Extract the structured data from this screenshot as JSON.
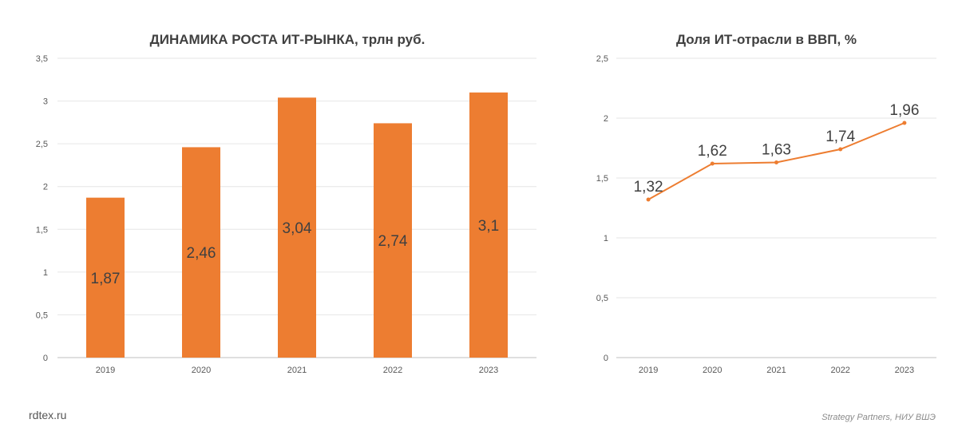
{
  "chart_data": [
    {
      "type": "bar",
      "title": "ДИНАМИКА РОСТА ИТ-РЫНКА, трлн руб.",
      "categories": [
        "2019",
        "2020",
        "2021",
        "2022",
        "2023"
      ],
      "values": [
        1.87,
        2.46,
        3.04,
        2.74,
        3.1
      ],
      "data_labels": [
        "1,87",
        "2,46",
        "3,04",
        "2,74",
        "3,1"
      ],
      "ylim": [
        0,
        3.5
      ],
      "yticks": [
        0,
        0.5,
        1,
        1.5,
        2,
        2.5,
        3,
        3.5
      ],
      "ytick_labels": [
        "0",
        "0,5",
        "1",
        "1,5",
        "2",
        "2,5",
        "3",
        "3,5"
      ],
      "grid": true,
      "color": "#ed7d31"
    },
    {
      "type": "line",
      "title": "Доля ИТ-отрасли в ВВП, %",
      "categories": [
        "2019",
        "2020",
        "2021",
        "2022",
        "2023"
      ],
      "values": [
        1.32,
        1.62,
        1.63,
        1.74,
        1.96
      ],
      "data_labels": [
        "1,32",
        "1,62",
        "1,63",
        "1,74",
        "1,96"
      ],
      "ylim": [
        0,
        2.5
      ],
      "yticks": [
        0,
        0.5,
        1,
        1.5,
        2,
        2.5
      ],
      "ytick_labels": [
        "0",
        "0,5",
        "1",
        "1,5",
        "2",
        "2,5"
      ],
      "grid": true,
      "color": "#ed7d31"
    }
  ],
  "footer": {
    "site": "rdtex.ru",
    "source": "Strategy Partners, НИУ ВШЭ"
  }
}
